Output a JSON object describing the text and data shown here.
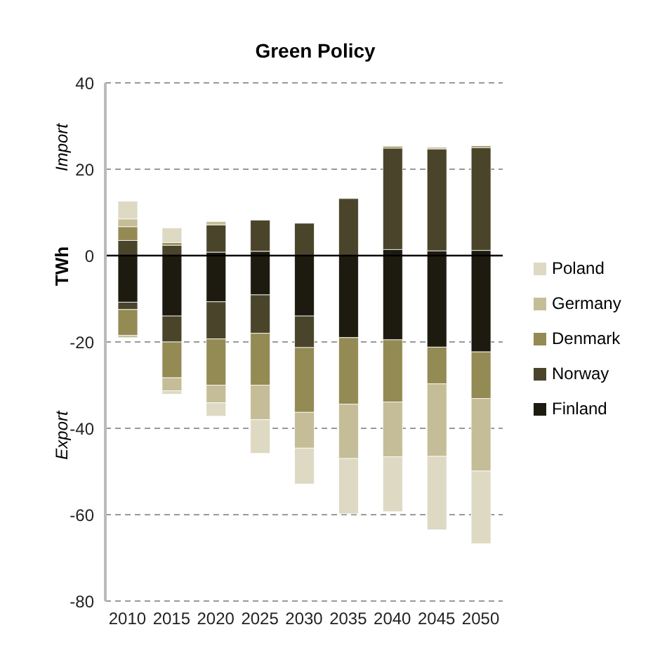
{
  "chart_data": {
    "type": "bar",
    "title": "Green Policy",
    "ylabel": "TWh",
    "annotations": [
      "Import",
      "Export"
    ],
    "categories": [
      "2010",
      "2015",
      "2020",
      "2025",
      "2030",
      "2035",
      "2040",
      "2045",
      "2050"
    ],
    "stacked": true,
    "ylim": [
      -80,
      40
    ],
    "yticks": [
      -80,
      -60,
      -40,
      -20,
      0,
      20,
      40
    ],
    "grid": "y",
    "legend": "right",
    "ref_lines": [
      {
        "axis": "y",
        "value": 0,
        "color": "#000000"
      }
    ],
    "series": [
      {
        "color": "#1d1b10",
        "values": [
          null,
          null,
          0.8,
          1.0,
          null,
          null,
          1.4,
          1.1,
          1.2
        ]
      },
      {
        "name": "Finland",
        "color": "#1d1b10",
        "values": [
          -10.8,
          -14.0,
          -10.7,
          -9.1,
          -14.0,
          -19.0,
          -19.5,
          -21.2,
          -22.3
        ]
      },
      {
        "color": "#4a452a",
        "values": [
          3.5,
          2.4,
          6.3,
          7.2,
          7.5,
          13.2,
          23.5,
          23.6,
          23.8
        ]
      },
      {
        "name": "Norway",
        "color": "#4a452a",
        "values": [
          -1.7,
          -6.0,
          -8.6,
          -8.9,
          -7.3,
          null,
          null,
          null,
          null
        ]
      },
      {
        "color": "#948a54",
        "values": [
          3.2,
          0.6,
          null,
          null,
          null,
          null,
          0.4,
          null,
          0.4
        ]
      },
      {
        "name": "Denmark",
        "color": "#948a54",
        "values": [
          -6.0,
          -8.3,
          -10.7,
          -12.0,
          -15.0,
          -15.4,
          -14.4,
          -8.5,
          -10.8
        ]
      },
      {
        "color": "#c4bd97",
        "values": [
          1.8,
          null,
          0.8,
          null,
          null,
          null,
          null,
          0.4,
          null
        ]
      },
      {
        "name": "Germany",
        "color": "#c4bd97",
        "values": [
          -0.5,
          -3.0,
          -4.1,
          -8.0,
          -8.3,
          -12.6,
          -12.7,
          -16.8,
          -16.8
        ]
      },
      {
        "color": "#ddd9c3",
        "values": [
          4.1,
          3.4,
          null,
          null,
          null,
          null,
          null,
          null,
          null
        ]
      },
      {
        "name": "Poland",
        "color": "#ddd9c3",
        "values": [
          null,
          -0.8,
          -3.1,
          -7.8,
          -8.3,
          -12.8,
          -12.7,
          -17.0,
          -16.8
        ]
      }
    ]
  }
}
